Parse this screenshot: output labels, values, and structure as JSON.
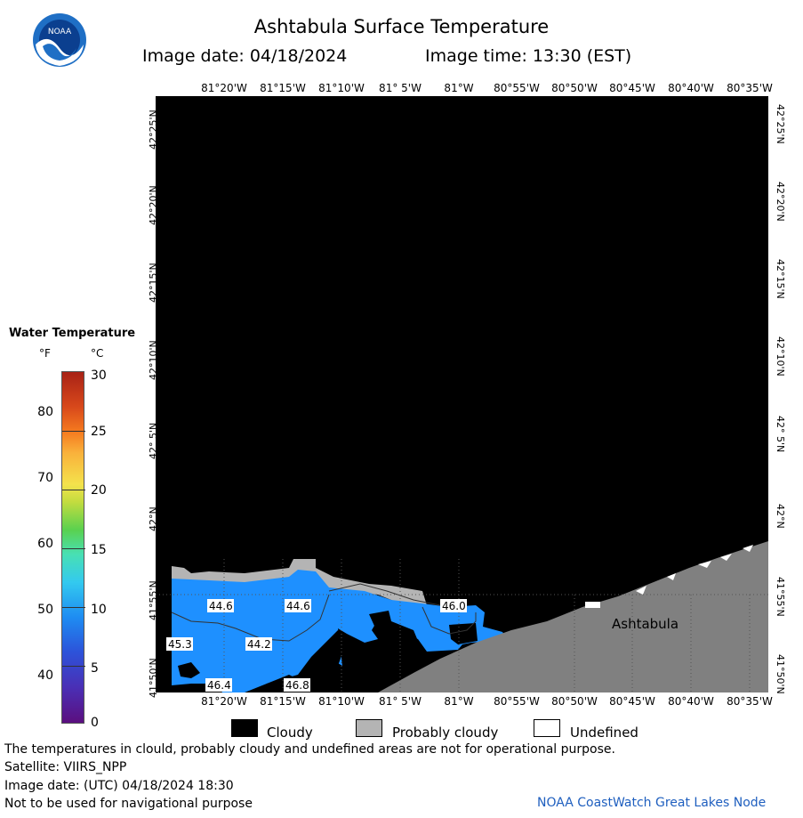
{
  "header": {
    "title": "Ashtabula Surface Temperature",
    "image_date": "Image date: 04/18/2024",
    "image_time": "Image time: 13:30 (EST)"
  },
  "logo": {
    "text": "NOAA",
    "icon": "noaa-logo-icon"
  },
  "map": {
    "lon_labels": [
      "81°20'W",
      "81°15'W",
      "81°10'W",
      "81° 5'W",
      "81°W",
      "80°55'W",
      "80°50'W",
      "80°45'W",
      "80°40'W",
      "80°35'W"
    ],
    "lat_labels": [
      "42°25'N",
      "42°20'N",
      "42°15'N",
      "42°10'N",
      "42° 5'N",
      "42°N",
      "41°55'N",
      "41°50'N"
    ],
    "city_label": "Ashtabula",
    "temp_labels": [
      "44.6",
      "44.6",
      "46.0",
      "45.3",
      "44.2",
      "46.4",
      "46.8"
    ],
    "colors": {
      "cloud": "#000000",
      "probably_cloudy": "#b4b4b4",
      "land": "#808080",
      "water": "#1e90ff"
    }
  },
  "legend": {
    "title": "Water Temperature",
    "unit_f": "°F",
    "unit_c": "°C",
    "ticks_f": [
      "80",
      "70",
      "60",
      "50",
      "40"
    ],
    "ticks_c": [
      "30",
      "25",
      "20",
      "15",
      "10",
      "5",
      "0"
    ]
  },
  "key": {
    "cloudy": "Cloudy",
    "probably_cloudy": "Probably cloudy",
    "undefined": "Undefined"
  },
  "footer": {
    "disclaimer": "The temperatures in clould, probably cloudy and undefined areas are not for operational purpose.",
    "satellite": "Satellite: VIIRS_NPP",
    "utc_date": "Image date: (UTC) 04/18/2024  18:30",
    "navigation": "Not to be used for navigational purpose",
    "node": "NOAA CoastWatch Great Lakes Node"
  }
}
